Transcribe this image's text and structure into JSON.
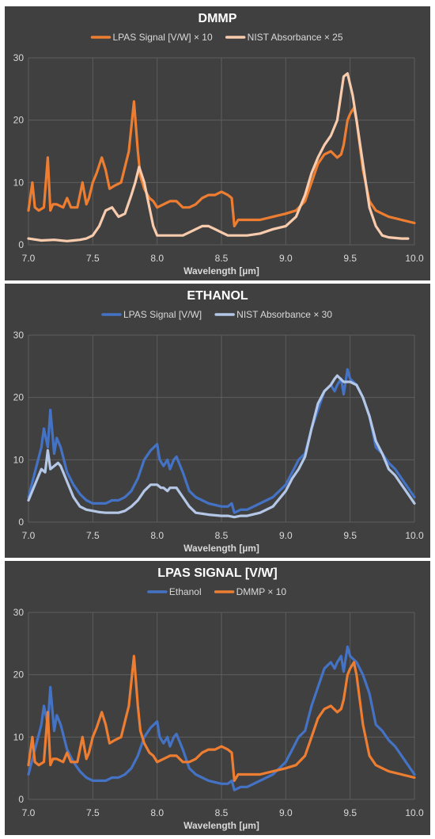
{
  "chart_data": [
    {
      "type": "line",
      "title": "DMMP",
      "xlabel": "Wavelength [µm]",
      "ylabel": "",
      "xlim": [
        7.0,
        10.0
      ],
      "ylim": [
        0,
        30
      ],
      "xticks": [
        "7.0",
        "7.5",
        "8.0",
        "8.5",
        "9.0",
        "9.5",
        "10.0"
      ],
      "yticks": [
        "0",
        "10",
        "20",
        "30"
      ],
      "grid": true,
      "legend": "top",
      "series": [
        {
          "name": "LPAS Signal [V/W] × 10",
          "color": "#ed7d31",
          "x": [
            7.0,
            7.03,
            7.05,
            7.08,
            7.12,
            7.15,
            7.17,
            7.19,
            7.22,
            7.27,
            7.3,
            7.33,
            7.35,
            7.38,
            7.42,
            7.45,
            7.47,
            7.5,
            7.53,
            7.57,
            7.6,
            7.63,
            7.67,
            7.72,
            7.75,
            7.78,
            7.82,
            7.85,
            7.87,
            7.9,
            7.94,
            7.97,
            8.0,
            8.05,
            8.1,
            8.15,
            8.2,
            8.25,
            8.3,
            8.35,
            8.4,
            8.45,
            8.5,
            8.55,
            8.58,
            8.6,
            8.63,
            8.7,
            8.8,
            8.9,
            9.0,
            9.08,
            9.15,
            9.2,
            9.25,
            9.3,
            9.35,
            9.4,
            9.43,
            9.45,
            9.48,
            9.5,
            9.53,
            9.55,
            9.6,
            9.65,
            9.7,
            9.75,
            9.8,
            9.9,
            10.0
          ],
          "y": [
            5.5,
            10,
            6,
            5.5,
            6,
            14,
            5.5,
            6.5,
            6.5,
            6,
            7.5,
            6,
            6,
            6,
            10,
            6.5,
            7.5,
            10,
            11.5,
            14,
            12,
            9,
            9.5,
            10,
            12.5,
            15,
            23,
            15,
            11,
            9,
            7.5,
            7,
            6,
            6.5,
            7,
            7,
            6,
            6,
            6.5,
            7.5,
            8,
            8,
            8.5,
            8,
            7.5,
            3,
            4,
            4,
            4,
            4.5,
            5,
            5.5,
            7,
            10,
            13,
            14.5,
            15,
            14,
            14.5,
            16,
            20,
            21,
            22,
            20,
            12,
            7,
            5.5,
            5,
            4.5,
            4,
            3.5
          ]
        },
        {
          "name": "NIST Absorbance × 25",
          "color": "#f8cbad",
          "x": [
            7.0,
            7.1,
            7.2,
            7.3,
            7.35,
            7.4,
            7.45,
            7.5,
            7.55,
            7.6,
            7.65,
            7.7,
            7.75,
            7.8,
            7.83,
            7.86,
            7.9,
            7.94,
            7.97,
            8.0,
            8.05,
            8.1,
            8.15,
            8.2,
            8.25,
            8.3,
            8.35,
            8.4,
            8.45,
            8.5,
            8.55,
            8.6,
            8.7,
            8.8,
            8.9,
            9.0,
            9.08,
            9.15,
            9.2,
            9.25,
            9.3,
            9.35,
            9.4,
            9.45,
            9.48,
            9.52,
            9.55,
            9.6,
            9.65,
            9.7,
            9.75,
            9.8,
            9.9,
            9.95
          ],
          "y": [
            1,
            0.7,
            0.8,
            0.6,
            0.7,
            0.8,
            1,
            1.5,
            3,
            5.5,
            6,
            4.5,
            5,
            8,
            10,
            12.5,
            10,
            6,
            3,
            1.5,
            1.5,
            1.5,
            1.5,
            1.5,
            2,
            2.5,
            3,
            3,
            2.5,
            2,
            1.5,
            1.5,
            1.5,
            1.8,
            2.5,
            3,
            4.5,
            8,
            11.5,
            14,
            16,
            17.5,
            20,
            27,
            27.5,
            24,
            20,
            13,
            6,
            3,
            1.5,
            1.2,
            1,
            1
          ]
        }
      ]
    },
    {
      "type": "line",
      "title": "ETHANOL",
      "xlabel": "Wavelength [µm]",
      "ylabel": "",
      "xlim": [
        7.0,
        10.0
      ],
      "ylim": [
        0,
        30
      ],
      "xticks": [
        "7.0",
        "7.5",
        "8.0",
        "8.5",
        "9.0",
        "9.5",
        "10.0"
      ],
      "yticks": [
        "0",
        "10",
        "20",
        "30"
      ],
      "grid": true,
      "legend": "top",
      "series": [
        {
          "name": "LPAS Signal [V/W]",
          "color": "#4472c4",
          "x": [
            7.0,
            7.05,
            7.1,
            7.12,
            7.15,
            7.17,
            7.2,
            7.22,
            7.25,
            7.3,
            7.35,
            7.4,
            7.45,
            7.5,
            7.55,
            7.6,
            7.65,
            7.7,
            7.75,
            7.8,
            7.85,
            7.9,
            7.95,
            8.0,
            8.02,
            8.05,
            8.08,
            8.1,
            8.13,
            8.15,
            8.2,
            8.25,
            8.3,
            8.4,
            8.5,
            8.55,
            8.58,
            8.6,
            8.65,
            8.7,
            8.8,
            8.9,
            9.0,
            9.05,
            9.1,
            9.15,
            9.2,
            9.25,
            9.3,
            9.35,
            9.38,
            9.4,
            9.43,
            9.45,
            9.48,
            9.5,
            9.55,
            9.6,
            9.65,
            9.7,
            9.75,
            9.8,
            9.85,
            9.9,
            9.95,
            10.0
          ],
          "y": [
            4,
            8,
            12,
            15,
            12,
            18,
            11,
            13.5,
            12,
            8,
            6,
            4.5,
            3.5,
            3,
            3,
            3,
            3.5,
            3.5,
            4,
            5,
            7,
            10,
            11.5,
            12.5,
            10,
            9,
            10,
            8.5,
            10,
            10.5,
            8,
            5,
            4,
            3,
            2.5,
            2.5,
            3,
            1.5,
            2,
            2,
            3,
            4,
            6,
            8,
            10,
            11,
            15,
            18,
            21,
            22,
            21,
            22,
            23,
            20.5,
            24.5,
            23,
            22,
            20,
            17,
            12,
            11,
            9.5,
            8.5,
            7,
            5.5,
            4
          ]
        },
        {
          "name": "NIST Absorbance × 30",
          "color": "#b4c7e7",
          "x": [
            7.0,
            7.05,
            7.1,
            7.13,
            7.15,
            7.17,
            7.2,
            7.23,
            7.25,
            7.3,
            7.35,
            7.4,
            7.45,
            7.5,
            7.55,
            7.6,
            7.65,
            7.7,
            7.75,
            7.8,
            7.85,
            7.9,
            7.95,
            8.0,
            8.03,
            8.05,
            8.08,
            8.1,
            8.13,
            8.15,
            8.2,
            8.25,
            8.3,
            8.4,
            8.5,
            8.55,
            8.6,
            8.65,
            8.7,
            8.8,
            8.9,
            9.0,
            9.05,
            9.1,
            9.15,
            9.2,
            9.25,
            9.3,
            9.35,
            9.38,
            9.4,
            9.45,
            9.5,
            9.55,
            9.6,
            9.65,
            9.7,
            9.75,
            9.8,
            9.85,
            9.9,
            9.95,
            10.0
          ],
          "y": [
            3.5,
            6,
            8.5,
            8,
            11.5,
            8.5,
            9,
            9.5,
            9,
            6.5,
            4,
            2.5,
            2,
            1.8,
            1.6,
            1.5,
            1.5,
            1.5,
            1.8,
            2.5,
            3.5,
            5,
            6,
            6,
            5.5,
            5.5,
            5,
            5.5,
            5.5,
            5.5,
            4,
            2.5,
            1.5,
            1.2,
            1,
            1,
            0.8,
            1,
            1,
            1.5,
            2.5,
            5,
            7,
            8.5,
            10.5,
            15,
            19,
            21,
            22,
            23,
            23.5,
            22.5,
            22.5,
            22,
            20,
            17,
            13,
            11,
            8.5,
            7.5,
            6,
            4.5,
            3
          ]
        }
      ]
    },
    {
      "type": "line",
      "title": "LPAS SIGNAL [V/W]",
      "xlabel": "Wavelength [µm]",
      "ylabel": "",
      "xlim": [
        7.0,
        10.0
      ],
      "ylim": [
        0,
        30
      ],
      "xticks": [
        "7.0",
        "7.5",
        "8.0",
        "8.5",
        "9.0",
        "9.5",
        "10.0"
      ],
      "yticks": [
        "0",
        "10",
        "20",
        "30"
      ],
      "grid": true,
      "legend": "top",
      "series": [
        {
          "name": "Ethanol",
          "color": "#4472c4",
          "x": [
            7.0,
            7.05,
            7.1,
            7.12,
            7.15,
            7.17,
            7.2,
            7.22,
            7.25,
            7.3,
            7.35,
            7.4,
            7.45,
            7.5,
            7.55,
            7.6,
            7.65,
            7.7,
            7.75,
            7.8,
            7.85,
            7.9,
            7.95,
            8.0,
            8.02,
            8.05,
            8.08,
            8.1,
            8.13,
            8.15,
            8.2,
            8.25,
            8.3,
            8.4,
            8.5,
            8.55,
            8.58,
            8.6,
            8.65,
            8.7,
            8.8,
            8.9,
            9.0,
            9.05,
            9.1,
            9.15,
            9.2,
            9.25,
            9.3,
            9.35,
            9.38,
            9.4,
            9.43,
            9.45,
            9.48,
            9.5,
            9.55,
            9.6,
            9.65,
            9.7,
            9.75,
            9.8,
            9.85,
            9.9,
            9.95,
            10.0
          ],
          "y": [
            4,
            8,
            12,
            15,
            12,
            18,
            11,
            13.5,
            12,
            8,
            6,
            4.5,
            3.5,
            3,
            3,
            3,
            3.5,
            3.5,
            4,
            5,
            7,
            10,
            11.5,
            12.5,
            10,
            9,
            10,
            8.5,
            10,
            10.5,
            8,
            5,
            4,
            3,
            2.5,
            2.5,
            3,
            1.5,
            2,
            2,
            3,
            4,
            6,
            8,
            10,
            11,
            15,
            18,
            21,
            22,
            21,
            22,
            23,
            20.5,
            24.5,
            23,
            22,
            20,
            17,
            12,
            11,
            9.5,
            8.5,
            7,
            5.5,
            4
          ]
        },
        {
          "name": "DMMP × 10",
          "color": "#ed7d31",
          "x": [
            7.0,
            7.03,
            7.05,
            7.08,
            7.12,
            7.15,
            7.17,
            7.19,
            7.22,
            7.27,
            7.3,
            7.33,
            7.35,
            7.38,
            7.42,
            7.45,
            7.47,
            7.5,
            7.53,
            7.57,
            7.6,
            7.63,
            7.67,
            7.72,
            7.75,
            7.78,
            7.82,
            7.85,
            7.87,
            7.9,
            7.94,
            7.97,
            8.0,
            8.05,
            8.1,
            8.15,
            8.2,
            8.25,
            8.3,
            8.35,
            8.4,
            8.45,
            8.5,
            8.55,
            8.58,
            8.6,
            8.63,
            8.7,
            8.8,
            8.9,
            9.0,
            9.08,
            9.15,
            9.2,
            9.25,
            9.3,
            9.35,
            9.4,
            9.43,
            9.45,
            9.48,
            9.5,
            9.53,
            9.55,
            9.6,
            9.65,
            9.7,
            9.75,
            9.8,
            9.9,
            10.0
          ],
          "y": [
            5.5,
            10,
            6,
            5.5,
            6,
            14,
            5.5,
            6.5,
            6.5,
            6,
            7.5,
            6,
            6,
            6,
            10,
            6.5,
            7.5,
            10,
            11.5,
            14,
            12,
            9,
            9.5,
            10,
            12.5,
            15,
            23,
            15,
            11,
            9,
            7.5,
            7,
            6,
            6.5,
            7,
            7,
            6,
            6,
            6.5,
            7.5,
            8,
            8,
            8.5,
            8,
            7.5,
            3,
            4,
            4,
            4,
            4.5,
            5,
            5.5,
            7,
            10,
            13,
            14.5,
            15,
            14,
            14.5,
            16,
            20,
            21,
            22,
            20,
            12,
            7,
            5.5,
            5,
            4.5,
            4,
            3.5
          ]
        }
      ]
    }
  ]
}
